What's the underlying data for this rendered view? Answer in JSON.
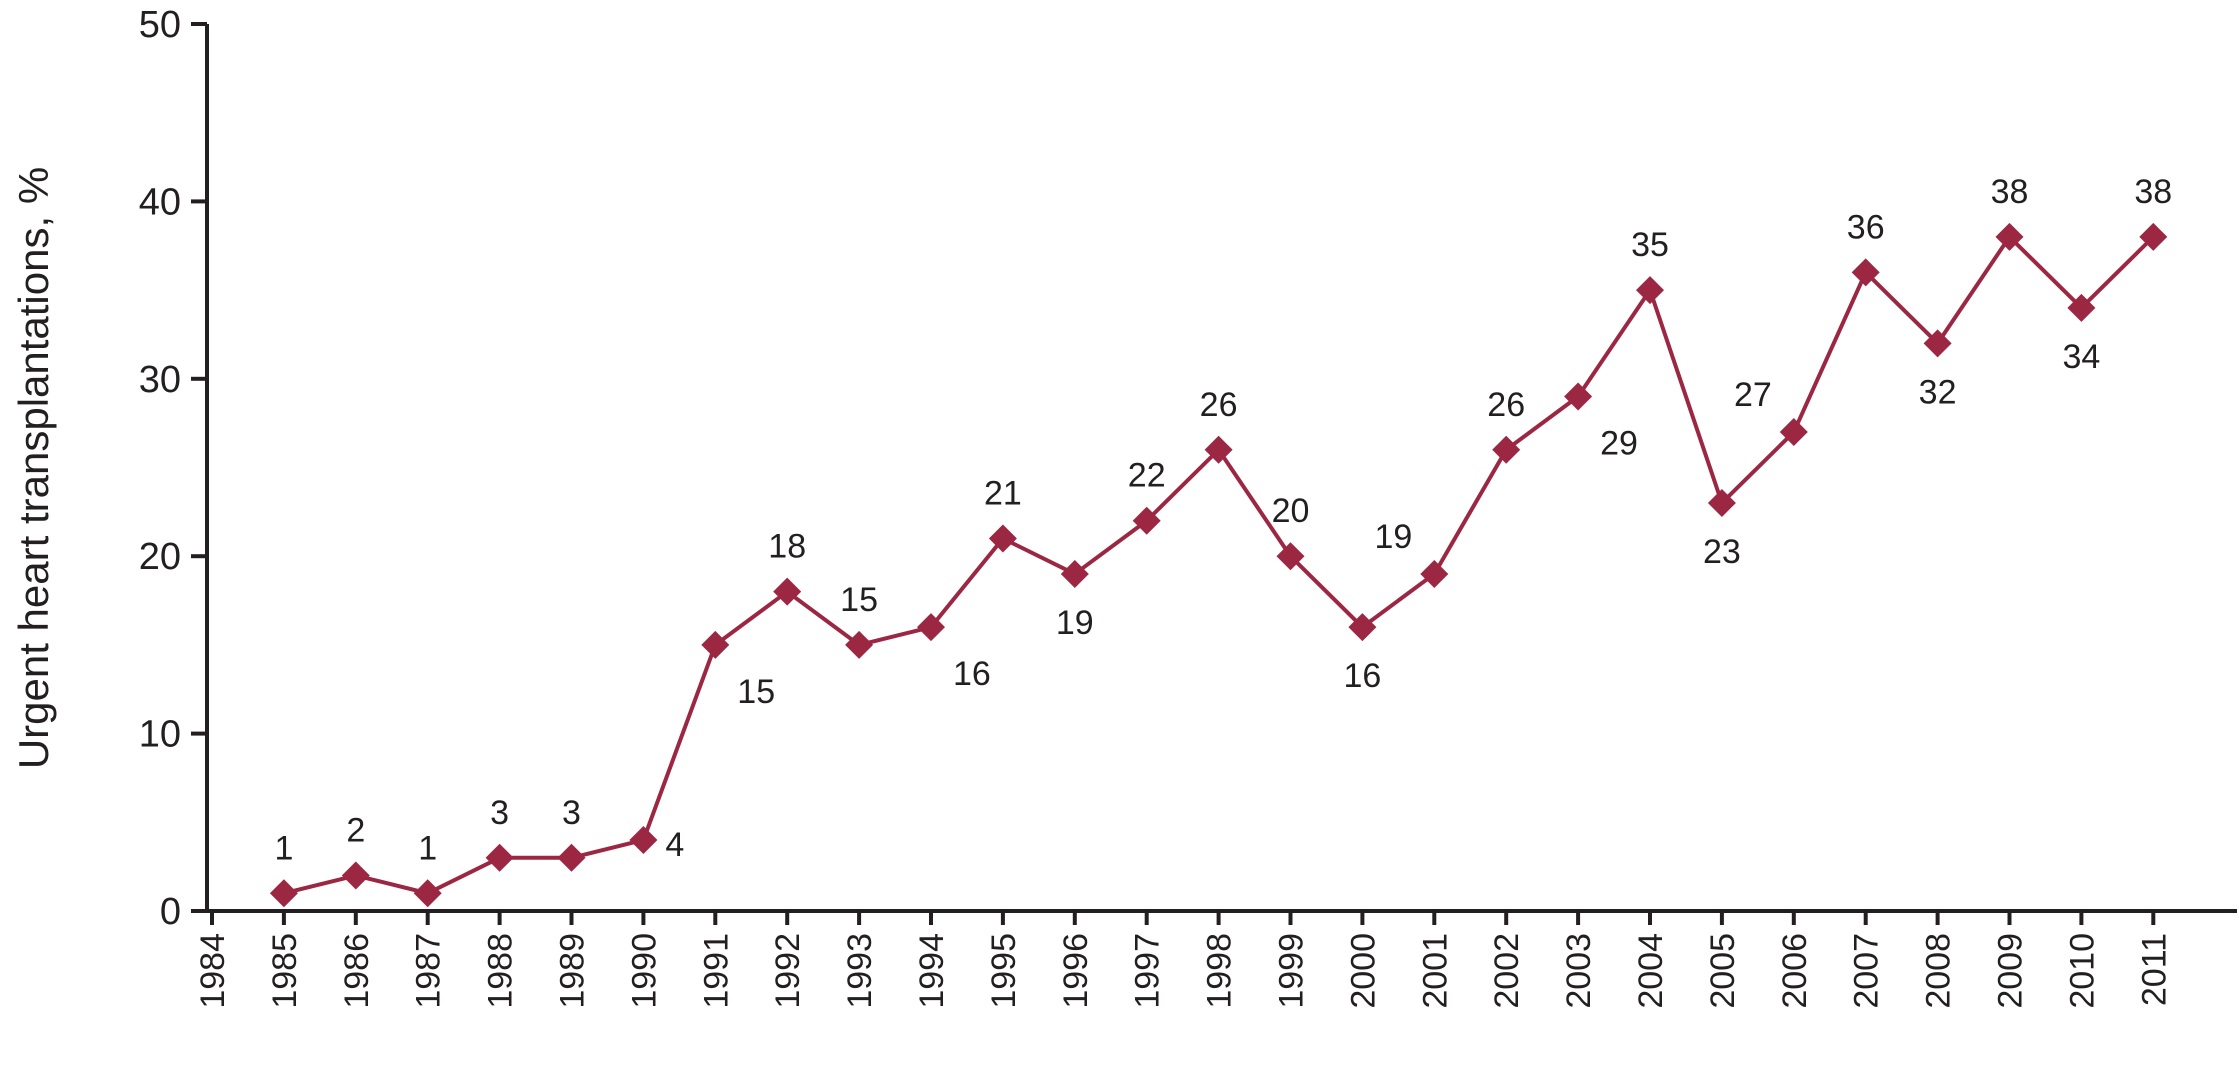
{
  "chart_data": {
    "type": "line",
    "title": "",
    "xlabel": "",
    "ylabel": "Urgent heart transplantations, %",
    "ylim": [
      0,
      50
    ],
    "yticks": [
      0,
      10,
      20,
      30,
      40,
      50
    ],
    "categories": [
      "1984",
      "1985",
      "1986",
      "1987",
      "1988",
      "1989",
      "1990",
      "1991",
      "1992",
      "1993",
      "1994",
      "1995",
      "1996",
      "1997",
      "1998",
      "1999",
      "2000",
      "2001",
      "2002",
      "2003",
      "2004",
      "2005",
      "2006",
      "2007",
      "2008",
      "2009",
      "2010",
      "2011"
    ],
    "series": [
      {
        "x": [
          "1985",
          "1986",
          "1987",
          "1988",
          "1989",
          "1990",
          "1991",
          "1992",
          "1993",
          "1994",
          "1995",
          "1996",
          "1997",
          "1998",
          "1999",
          "2000",
          "2001",
          "2002",
          "2003",
          "2004",
          "2005",
          "2006",
          "2007",
          "2008",
          "2009",
          "2010",
          "2011"
        ],
        "values": [
          1,
          2,
          1,
          3,
          3,
          4,
          15,
          18,
          15,
          16,
          21,
          19,
          22,
          26,
          20,
          16,
          19,
          26,
          29,
          35,
          23,
          27,
          36,
          32,
          38,
          34,
          38
        ],
        "labels": [
          "1",
          "2",
          "1",
          "3",
          "3",
          "4",
          "15",
          "18",
          "15",
          "16",
          "21",
          "19",
          "22",
          "26",
          "20",
          "16",
          "19",
          "26",
          "29",
          "35",
          "23",
          "27",
          "36",
          "32",
          "38",
          "34",
          "38"
        ],
        "color": "#9b2743",
        "marker": "diamond"
      }
    ],
    "grid": false,
    "legend": "none"
  }
}
